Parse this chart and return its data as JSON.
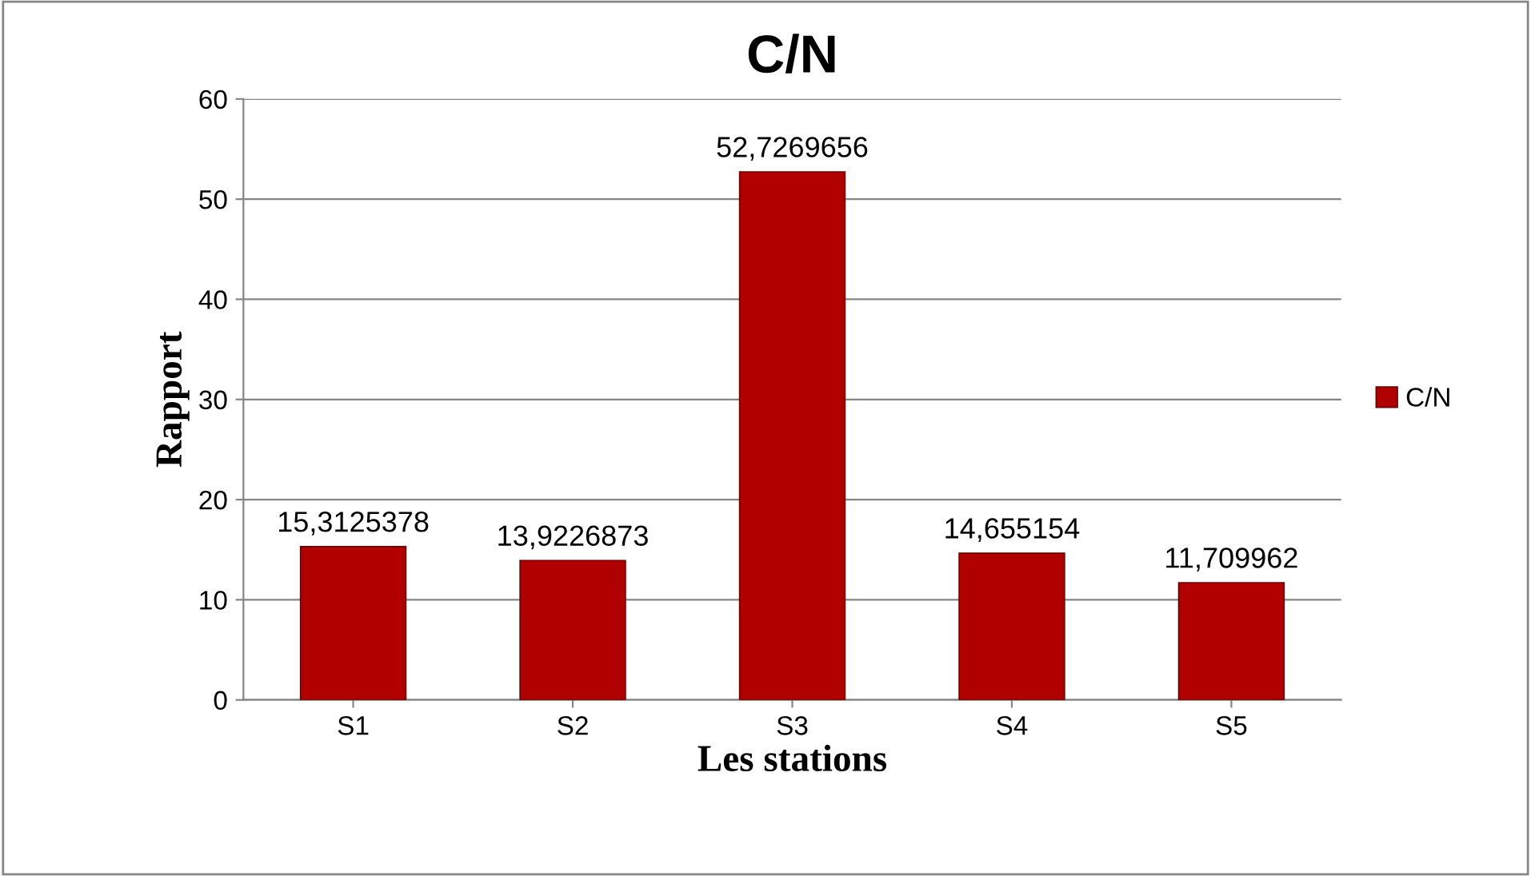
{
  "chart_data": {
    "type": "bar",
    "title": "C/N",
    "xlabel": "Les stations",
    "ylabel": "Rapport",
    "categories": [
      "S1",
      "S2",
      "S3",
      "S4",
      "S5"
    ],
    "series": [
      {
        "name": "C/N",
        "color": "#b00000",
        "values": [
          15.3125378,
          13.9226873,
          52.7269656,
          14.655154,
          11.709962
        ],
        "value_labels": [
          "15,3125378",
          "13,9226873",
          "52,7269656",
          "14,655154",
          "11,709962"
        ]
      }
    ],
    "ylim": [
      0,
      60
    ],
    "yticks": [
      0,
      10,
      20,
      30,
      40,
      50,
      60
    ],
    "grid": "y",
    "legend": "right"
  }
}
